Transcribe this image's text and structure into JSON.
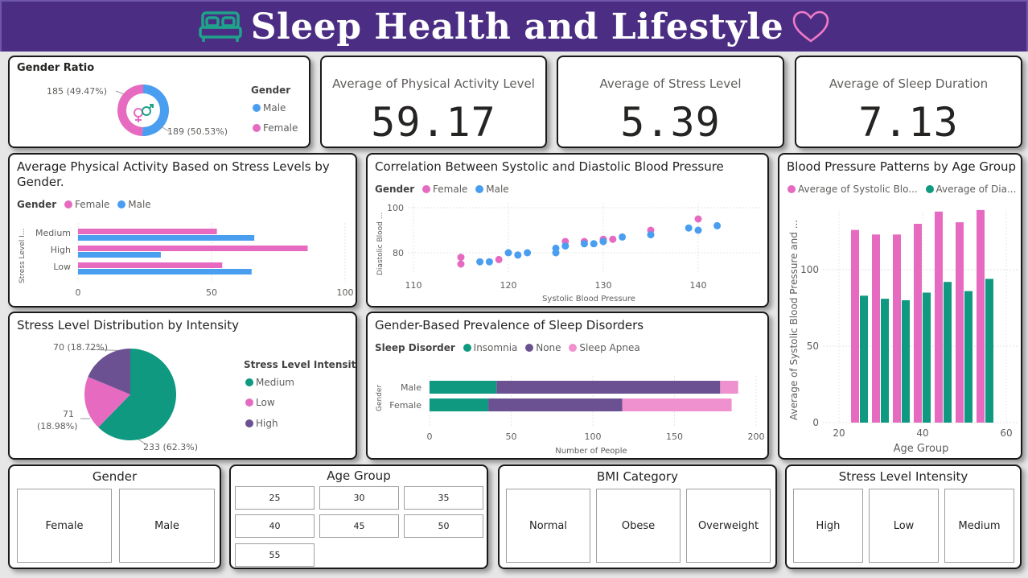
{
  "header": {
    "title": "Sleep Health and Lifestyle",
    "bed_icon": "bed-icon",
    "heart_icon": "heart-outline-icon",
    "bg_color": "#4b2e83"
  },
  "colors": {
    "female": "#e66bc0",
    "male": "#4a9ef0",
    "medium": "#0f9980",
    "low": "#e66bc0",
    "high": "#6b5192",
    "insomnia": "#0f9980",
    "none": "#6b5192",
    "apnea": "#ef90cf",
    "systolic": "#e66bc0",
    "diastolic": "#0f9980"
  },
  "gender_ratio": {
    "title": "Gender Ratio",
    "legend_title": "Gender",
    "legend": [
      "Male",
      "Female"
    ],
    "label_female": "185 (49.47%)",
    "label_male": "189 (50.53%)",
    "chart_data": {
      "type": "pie",
      "categories": [
        "Male",
        "Female"
      ],
      "values": [
        189,
        185
      ]
    }
  },
  "cards": [
    {
      "label": "Average of Physical Activity Level",
      "value": "59.17"
    },
    {
      "label": "Average of Stress Level",
      "value": "5.39"
    },
    {
      "label": "Average of Sleep Duration",
      "value": "7.13"
    }
  ],
  "activity_stress": {
    "title_line1": "Average Physical Activity Based on Stress Levels by",
    "title_line2": "Gender.",
    "legend_title": "Gender",
    "legend": [
      "Female",
      "Male"
    ],
    "ylabel": "Stress Level I...",
    "xticks": [
      "0",
      "50",
      "100"
    ],
    "chart_data": {
      "type": "bar",
      "categories": [
        "Medium",
        "High",
        "Low"
      ],
      "series": [
        {
          "name": "Female",
          "values": [
            52,
            86,
            54
          ]
        },
        {
          "name": "Male",
          "values": [
            66,
            31,
            65
          ]
        }
      ],
      "xlim": [
        0,
        100
      ]
    }
  },
  "bp_scatter": {
    "title": "Correlation Between Systolic and Diastolic Blood Pressure",
    "legend_title": "Gender",
    "legend": [
      "Female",
      "Male"
    ],
    "xlabel": "Systolic Blood Pressure",
    "ylabel": "Diastolic Blood ...",
    "xticks": [
      "110",
      "120",
      "130",
      "140"
    ],
    "yticks": [
      "100",
      "80"
    ],
    "chart_data": {
      "type": "scatter",
      "xlim": [
        110,
        146
      ],
      "ylim": [
        70,
        100
      ],
      "series": [
        {
          "name": "Female",
          "points": [
            [
              115,
              78
            ],
            [
              115,
              75
            ],
            [
              119,
              77
            ],
            [
              126,
              85
            ],
            [
              128,
              85
            ],
            [
              130,
              86
            ],
            [
              130,
              85
            ],
            [
              131,
              86
            ],
            [
              135,
              90
            ],
            [
              140,
              95
            ]
          ]
        },
        {
          "name": "Male",
          "points": [
            [
              117,
              76
            ],
            [
              118,
              76
            ],
            [
              120,
              80
            ],
            [
              121,
              79
            ],
            [
              122,
              80
            ],
            [
              125,
              80
            ],
            [
              125,
              82
            ],
            [
              126,
              83
            ],
            [
              128,
              84
            ],
            [
              129,
              84
            ],
            [
              130,
              85
            ],
            [
              132,
              87
            ],
            [
              135,
              88
            ],
            [
              139,
              91
            ],
            [
              140,
              90
            ],
            [
              142,
              92
            ]
          ]
        }
      ]
    }
  },
  "bp_age": {
    "title": "Blood Pressure Patterns by Age Group",
    "legend": [
      "Average of Systolic Blo...",
      "Average of Dia..."
    ],
    "ylabel": "Average of Systolic Blood Pressure and ...",
    "xlabel": "Age Group",
    "xticks": [
      "20",
      "40",
      "60"
    ],
    "yticks": [
      "100",
      "50",
      "0"
    ],
    "chart_data": {
      "type": "bar",
      "categories": [
        "25",
        "30",
        "35",
        "40",
        "45",
        "50",
        "55"
      ],
      "series": [
        {
          "name": "Average of Systolic Blood Pressure",
          "values": [
            126,
            123,
            123,
            130,
            138,
            131,
            139
          ]
        },
        {
          "name": "Average of Diastolic Blood Pressure",
          "values": [
            83,
            81,
            80,
            85,
            92,
            86,
            94
          ]
        }
      ],
      "xlim": [
        20,
        62
      ],
      "ylim": [
        0,
        146
      ]
    }
  },
  "stress_dist": {
    "title": "Stress Level Distribution by Intensity",
    "legend_title": "Stress Level Intensity",
    "legend": [
      "Medium",
      "Low",
      "High"
    ],
    "label_high": "70 (18.72%)",
    "label_low_1": "71",
    "label_low_2": "(18.98%)",
    "label_medium": "233 (62.3%)",
    "chart_data": {
      "type": "pie",
      "categories": [
        "Medium",
        "Low",
        "High"
      ],
      "values": [
        233,
        71,
        70
      ]
    }
  },
  "disorders": {
    "title": "Gender-Based Prevalence of Sleep Disorders",
    "legend_title": "Sleep Disorder",
    "legend": [
      "Insomnia",
      "None",
      "Sleep Apnea"
    ],
    "ylabel": "Gender",
    "xlabel": "Number of People",
    "xticks": [
      "0",
      "50",
      "100",
      "150",
      "200"
    ],
    "chart_data": {
      "type": "bar",
      "categories": [
        "Male",
        "Female"
      ],
      "series": [
        {
          "name": "Insomnia",
          "values": [
            41,
            36
          ]
        },
        {
          "name": "None",
          "values": [
            137,
            82
          ]
        },
        {
          "name": "Sleep Apnea",
          "values": [
            11,
            67
          ]
        }
      ],
      "xlim": [
        0,
        200
      ]
    }
  },
  "slicers": {
    "gender": {
      "title": "Gender",
      "items": [
        "Female",
        "Male"
      ]
    },
    "age": {
      "title": "Age Group",
      "items": [
        "25",
        "30",
        "35",
        "40",
        "45",
        "50",
        "55"
      ]
    },
    "bmi": {
      "title": "BMI Category",
      "items": [
        "Normal",
        "Obese",
        "Overweight"
      ]
    },
    "stress": {
      "title": "Stress Level Intensity",
      "items": [
        "High",
        "Low",
        "Medium"
      ]
    }
  }
}
